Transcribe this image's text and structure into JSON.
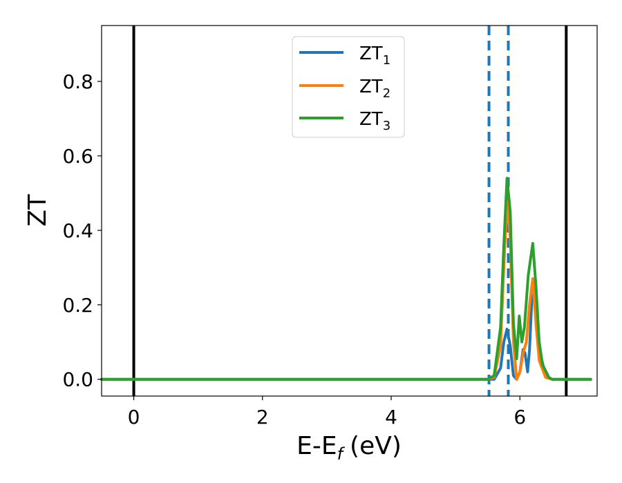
{
  "chart_data": {
    "type": "line",
    "xlabel": "E-E",
    "xlabel_sub": "f",
    "xlabel_unit": "(eV)",
    "ylabel": "ZT",
    "xlim": [
      -0.5,
      7.2
    ],
    "ylim": [
      -0.045,
      0.95
    ],
    "xticks": [
      0,
      2,
      4,
      6
    ],
    "xtick_labels": [
      "0",
      "2",
      "4",
      "6"
    ],
    "yticks": [
      0.0,
      0.2,
      0.4,
      0.6,
      0.8
    ],
    "ytick_labels": [
      "0.0",
      "0.2",
      "0.4",
      "0.6",
      "0.8"
    ],
    "grid": false,
    "legend_position": "top-center",
    "vlines": [
      {
        "x": 0.0,
        "style": "solid",
        "color": "#000000"
      },
      {
        "x": 6.72,
        "style": "solid",
        "color": "#000000"
      },
      {
        "x": 5.52,
        "style": "dashed",
        "color": "#1f77b4"
      },
      {
        "x": 5.82,
        "style": "dashed",
        "color": "#1f77b4"
      }
    ],
    "series": [
      {
        "name": "ZT",
        "name_sub": "1",
        "color": "#1f77b4",
        "points": [
          [
            -0.5,
            0
          ],
          [
            5.5,
            0
          ],
          [
            5.6,
            0.0
          ],
          [
            5.7,
            0.03
          ],
          [
            5.75,
            0.1
          ],
          [
            5.8,
            0.135
          ],
          [
            5.85,
            0.09
          ],
          [
            5.9,
            0.01
          ],
          [
            5.95,
            0.0
          ],
          [
            6.0,
            0.02
          ],
          [
            6.05,
            0.08
          ],
          [
            6.08,
            0.07
          ],
          [
            6.12,
            0.02
          ],
          [
            6.15,
            0.08
          ],
          [
            6.2,
            0.27
          ],
          [
            6.26,
            0.17
          ],
          [
            6.3,
            0.08
          ],
          [
            6.4,
            0.01
          ],
          [
            6.5,
            0.0
          ],
          [
            7.1,
            0
          ]
        ]
      },
      {
        "name": "ZT",
        "name_sub": "2",
        "color": "#ff7f0e",
        "points": [
          [
            -0.5,
            0
          ],
          [
            5.5,
            0
          ],
          [
            5.6,
            0.005
          ],
          [
            5.7,
            0.09
          ],
          [
            5.75,
            0.3
          ],
          [
            5.8,
            0.48
          ],
          [
            5.85,
            0.38
          ],
          [
            5.9,
            0.1
          ],
          [
            5.95,
            0.0
          ],
          [
            6.0,
            0.02
          ],
          [
            6.05,
            0.07
          ],
          [
            6.1,
            0.1
          ],
          [
            6.15,
            0.2
          ],
          [
            6.2,
            0.27
          ],
          [
            6.25,
            0.15
          ],
          [
            6.3,
            0.05
          ],
          [
            6.4,
            0.005
          ],
          [
            6.5,
            0.0
          ],
          [
            7.1,
            0
          ]
        ]
      },
      {
        "name": "ZT",
        "name_sub": "3",
        "color": "#2ca02c",
        "points": [
          [
            -0.5,
            0
          ],
          [
            5.5,
            0
          ],
          [
            5.6,
            0.01
          ],
          [
            5.7,
            0.14
          ],
          [
            5.75,
            0.36
          ],
          [
            5.8,
            0.54
          ],
          [
            5.85,
            0.45
          ],
          [
            5.9,
            0.15
          ],
          [
            5.95,
            0.055
          ],
          [
            5.99,
            0.17
          ],
          [
            6.03,
            0.1
          ],
          [
            6.07,
            0.14
          ],
          [
            6.13,
            0.28
          ],
          [
            6.2,
            0.365
          ],
          [
            6.25,
            0.25
          ],
          [
            6.3,
            0.1
          ],
          [
            6.35,
            0.04
          ],
          [
            6.45,
            0.005
          ],
          [
            6.5,
            0.0
          ],
          [
            7.1,
            0
          ]
        ]
      }
    ]
  }
}
